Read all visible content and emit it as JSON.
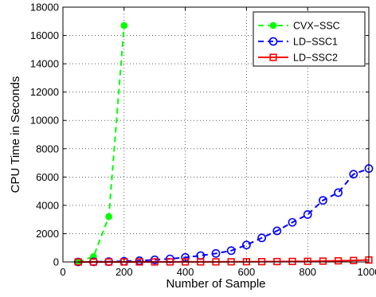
{
  "chart_data": {
    "type": "line",
    "title": "",
    "xlabel": "Number of Sample",
    "ylabel": "CPU Time in Seconds",
    "xlim": [
      0,
      1000
    ],
    "ylim": [
      0,
      18000
    ],
    "xticks": [
      0,
      200,
      400,
      600,
      800,
      1000
    ],
    "yticks": [
      0,
      2000,
      4000,
      6000,
      8000,
      10000,
      12000,
      14000,
      16000,
      18000
    ],
    "grid": true,
    "legend_position": "top-right",
    "series": [
      {
        "name": "CVX−SSC",
        "color": "#00ff00",
        "line_style": "dashed",
        "marker": "filled-circle",
        "x": [
          50,
          100,
          150,
          200
        ],
        "y": [
          5,
          380,
          3200,
          16700
        ]
      },
      {
        "name": "LD−SSC1",
        "color": "#0000ff",
        "line_style": "dashed",
        "marker": "open-circle",
        "x": [
          50,
          100,
          150,
          200,
          250,
          300,
          350,
          400,
          450,
          500,
          550,
          600,
          650,
          700,
          750,
          800,
          850,
          900,
          950,
          1000
        ],
        "y": [
          2,
          10,
          25,
          50,
          90,
          150,
          220,
          320,
          450,
          600,
          800,
          1200,
          1700,
          2200,
          2800,
          3350,
          4350,
          4900,
          6200,
          6600
        ]
      },
      {
        "name": "LD−SSC2",
        "color": "#ff0000",
        "line_style": "solid",
        "marker": "open-square",
        "x": [
          50,
          100,
          150,
          200,
          250,
          300,
          350,
          400,
          450,
          500,
          550,
          600,
          650,
          700,
          750,
          800,
          850,
          900,
          950,
          1000
        ],
        "y": [
          1,
          1,
          2,
          2,
          3,
          4,
          5,
          6,
          8,
          10,
          13,
          17,
          22,
          28,
          36,
          45,
          60,
          80,
          105,
          140
        ]
      }
    ]
  }
}
